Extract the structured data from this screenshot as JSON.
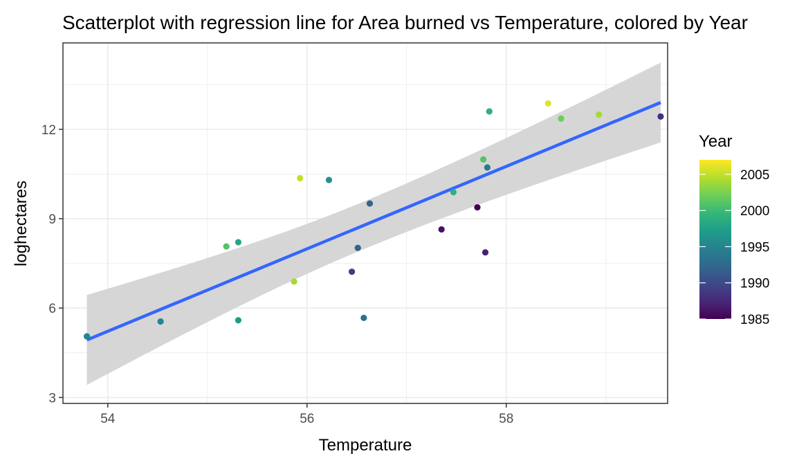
{
  "chart_data": {
    "type": "scatter",
    "title": "Scatterplot with regression line for Area burned vs Temperature, colored by Year",
    "xlabel": "Temperature",
    "ylabel": "loghectares",
    "xlim": [
      53.55,
      59.62
    ],
    "ylim": [
      2.8,
      14.9
    ],
    "x_ticks": [
      54,
      56,
      58
    ],
    "y_ticks": [
      3,
      6,
      9,
      12
    ],
    "x_tick_labels": [
      "54",
      "56",
      "58"
    ],
    "y_tick_labels": [
      "3",
      "6",
      "9",
      "12"
    ],
    "grid": true,
    "legend": {
      "title": "Year",
      "placement": "right",
      "type": "colorbar",
      "range": [
        1985,
        2007
      ],
      "ticks": [
        1985,
        1990,
        1995,
        2000,
        2005
      ],
      "tick_labels": [
        "1985",
        "1990",
        "1995",
        "2000",
        "2005"
      ],
      "palette": "viridis"
    },
    "points": [
      {
        "x": 53.79,
        "y": 5.05,
        "year": 1995
      },
      {
        "x": 54.53,
        "y": 5.55,
        "year": 1995
      },
      {
        "x": 55.19,
        "y": 8.07,
        "year": 2001
      },
      {
        "x": 55.31,
        "y": 8.21,
        "year": 1998
      },
      {
        "x": 55.31,
        "y": 5.59,
        "year": 1997
      },
      {
        "x": 55.87,
        "y": 6.89,
        "year": 2004
      },
      {
        "x": 55.93,
        "y": 10.36,
        "year": 2005
      },
      {
        "x": 56.22,
        "y": 10.3,
        "year": 1996
      },
      {
        "x": 56.45,
        "y": 7.22,
        "year": 1989
      },
      {
        "x": 56.51,
        "y": 8.02,
        "year": 1992
      },
      {
        "x": 56.57,
        "y": 5.67,
        "year": 1993
      },
      {
        "x": 56.63,
        "y": 9.51,
        "year": 1992
      },
      {
        "x": 57.35,
        "y": 8.64,
        "year": 1986
      },
      {
        "x": 57.47,
        "y": 9.89,
        "year": 1999
      },
      {
        "x": 57.71,
        "y": 9.38,
        "year": 1985
      },
      {
        "x": 57.77,
        "y": 10.99,
        "year": 2001
      },
      {
        "x": 57.79,
        "y": 7.87,
        "year": 1987
      },
      {
        "x": 57.81,
        "y": 10.72,
        "year": 1994
      },
      {
        "x": 57.83,
        "y": 12.6,
        "year": 1999
      },
      {
        "x": 58.42,
        "y": 12.87,
        "year": 2006
      },
      {
        "x": 58.55,
        "y": 12.36,
        "year": 2002
      },
      {
        "x": 58.93,
        "y": 12.49,
        "year": 2004
      },
      {
        "x": 59.55,
        "y": 12.43,
        "year": 1988
      }
    ],
    "regression": {
      "x": [
        53.79,
        59.55
      ],
      "y": [
        4.93,
        12.9
      ],
      "ci_lower": [
        3.42,
        11.56
      ],
      "ci_upper": [
        6.44,
        14.24
      ],
      "x_mid": 56.55,
      "ci_mid_lower": [
        7.95,
        8.72
      ]
    },
    "colors": {
      "line": "#3366ff",
      "band": "#d4d4d4",
      "grid": "#ebebeb",
      "panel_border": "#333333"
    }
  }
}
